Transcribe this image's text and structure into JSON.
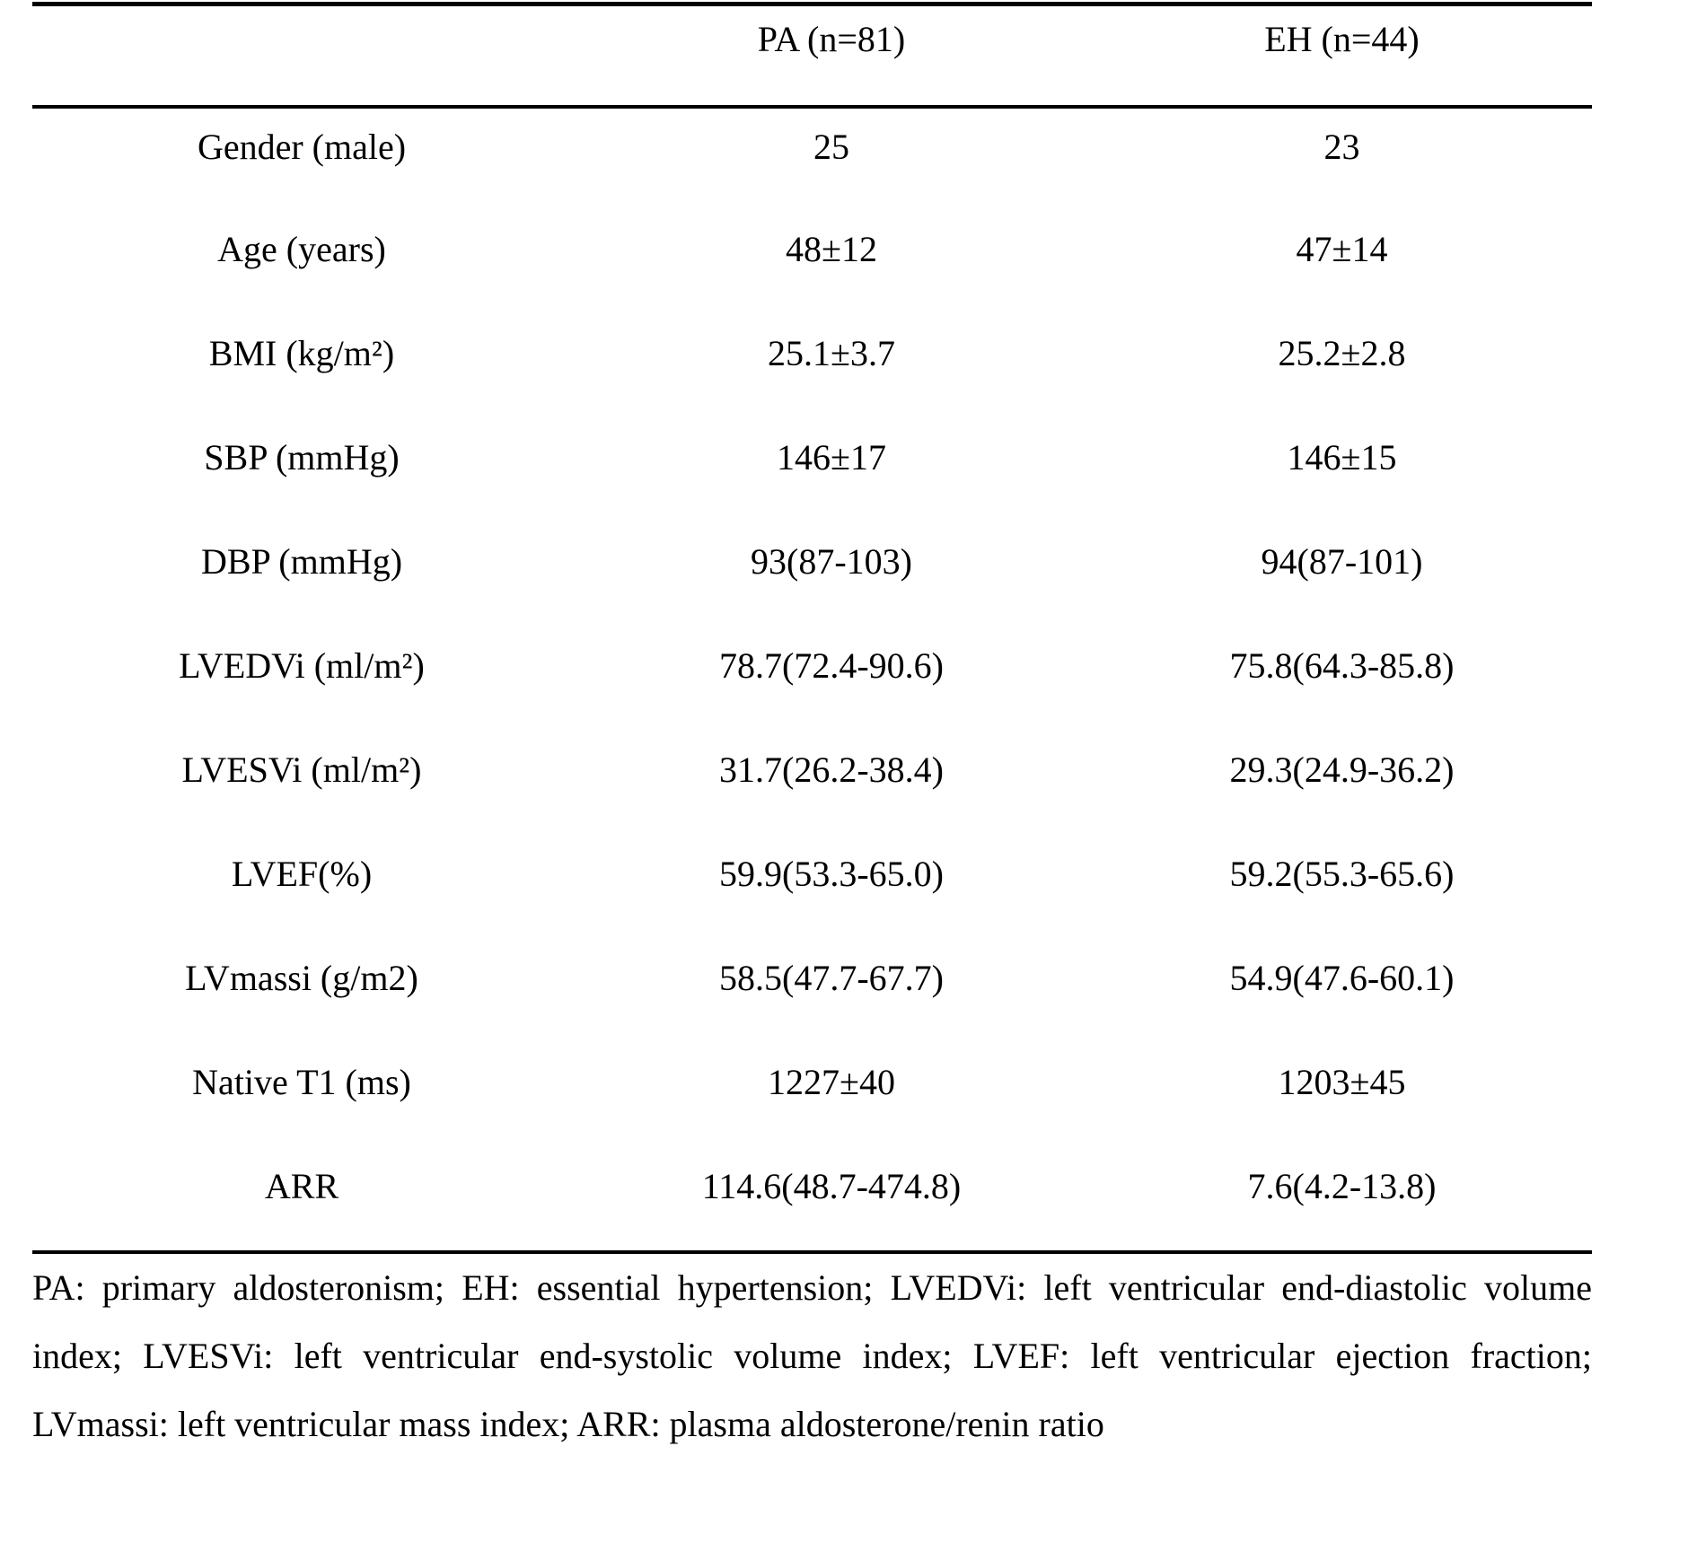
{
  "page": {
    "background": "#ffffff",
    "text_color": "#000000"
  },
  "table": {
    "columns": [
      "",
      "PA (n=81)",
      "EH (n=44)"
    ],
    "rows": [
      {
        "label": "Gender (male)",
        "pa": "25",
        "eh": "23"
      },
      {
        "label": "Age (years)",
        "pa": "48±12",
        "eh": "47±14"
      },
      {
        "label": "BMI (kg/m²)",
        "pa": "25.1±3.7",
        "eh": "25.2±2.8"
      },
      {
        "label": "SBP (mmHg)",
        "pa": "146±17",
        "eh": "146±15"
      },
      {
        "label": "DBP (mmHg)",
        "pa": "93(87-103)",
        "eh": "94(87-101)"
      },
      {
        "label": "LVEDVi (ml/m²)",
        "pa": "78.7(72.4-90.6)",
        "eh": "75.8(64.3-85.8)"
      },
      {
        "label": "LVESVi (ml/m²)",
        "pa": "31.7(26.2-38.4)",
        "eh": "29.3(24.9-36.2)"
      },
      {
        "label": "LVEF(%)",
        "pa": "59.9(53.3-65.0)",
        "eh": "59.2(55.3-65.6)"
      },
      {
        "label": "LVmassi (g/m2)",
        "pa": "58.5(47.7-67.7)",
        "eh": "54.9(47.6-60.1)"
      },
      {
        "label": "Native T1 (ms)",
        "pa": "1227±40",
        "eh": "1203±45"
      },
      {
        "label": "ARR",
        "pa": "114.6(48.7-474.8)",
        "eh": "7.6(4.2-13.8)"
      }
    ],
    "footnote": "PA: primary aldosteronism; EH: essential hypertension; LVEDVi: left ventricular end-diastolic volume index; LVESVi: left ventricular end-systolic volume index; LVEF: left ventricular ejection fraction; LVmassi: left ventricular mass index; ARR: plasma aldosterone/renin ratio"
  }
}
